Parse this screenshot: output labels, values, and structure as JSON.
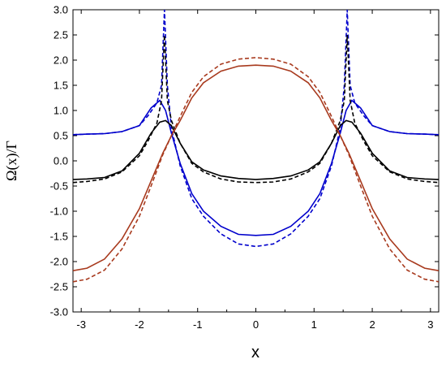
{
  "chart_data": {
    "type": "line",
    "xlabel": "x",
    "ylabel": "Ω(x)/Γ",
    "xlim": [
      -3.14159,
      3.14159
    ],
    "ylim": [
      -3.0,
      3.0
    ],
    "x_ticks": [
      -3,
      -2,
      -1,
      0,
      1,
      2,
      3
    ],
    "x_tick_labels": [
      "-3",
      "-2",
      "-1",
      "0",
      "1",
      "2",
      "3"
    ],
    "y_ticks": [
      -3.0,
      -2.5,
      -2.0,
      -1.5,
      -1.0,
      -0.5,
      0.0,
      0.5,
      1.0,
      1.5,
      2.0,
      2.5,
      3.0
    ],
    "y_tick_labels": [
      "-3.0",
      "-2.5",
      "-2.0",
      "-1.5",
      "-1.0",
      "-0.5",
      "0.0",
      "0.5",
      "1.0",
      "1.5",
      "2.0",
      "2.5",
      "3.0"
    ],
    "grid": false,
    "series": [
      {
        "color": "#0000cc",
        "dash": "solid",
        "x": [
          0,
          0.3,
          0.6,
          0.9,
          1.1,
          1.3,
          1.45,
          1.55,
          1.65,
          1.8,
          2.0,
          2.3,
          2.6,
          2.9,
          3.14
        ],
        "y": [
          -1.48,
          -1.46,
          -1.3,
          -1.0,
          -0.65,
          -0.05,
          0.55,
          1.0,
          1.2,
          1.05,
          0.7,
          0.58,
          0.54,
          0.53,
          0.52
        ]
      },
      {
        "color": "#0000cc",
        "dash": "dashed",
        "x": [
          0,
          0.3,
          0.6,
          0.9,
          1.1,
          1.3,
          1.45,
          1.52,
          1.57,
          1.62,
          1.7,
          1.85,
          2.0,
          2.3,
          2.6,
          2.9,
          3.14
        ],
        "y": [
          -1.7,
          -1.65,
          -1.45,
          -1.1,
          -0.75,
          -0.1,
          0.65,
          1.5,
          3.0,
          1.5,
          1.15,
          0.9,
          0.7,
          0.58,
          0.54,
          0.53,
          0.52
        ]
      },
      {
        "color": "#000000",
        "dash": "solid",
        "x": [
          0,
          0.3,
          0.6,
          0.9,
          1.1,
          1.3,
          1.45,
          1.55,
          1.65,
          1.8,
          2.0,
          2.3,
          2.6,
          2.9,
          3.14
        ],
        "y": [
          -0.37,
          -0.35,
          -0.3,
          -0.18,
          -0.02,
          0.35,
          0.7,
          0.8,
          0.77,
          0.55,
          0.15,
          -0.2,
          -0.33,
          -0.36,
          -0.37
        ]
      },
      {
        "color": "#000000",
        "dash": "dashed",
        "x": [
          0,
          0.3,
          0.6,
          0.9,
          1.1,
          1.3,
          1.45,
          1.52,
          1.57,
          1.62,
          1.7,
          1.85,
          2.0,
          2.3,
          2.6,
          2.9,
          3.14
        ],
        "y": [
          -0.43,
          -0.42,
          -0.36,
          -0.22,
          -0.05,
          0.35,
          0.8,
          1.2,
          2.5,
          1.2,
          0.75,
          0.4,
          0.1,
          -0.22,
          -0.36,
          -0.41,
          -0.43
        ]
      },
      {
        "color": "#a83a1e",
        "dash": "solid",
        "x": [
          0,
          0.3,
          0.6,
          0.9,
          1.1,
          1.3,
          1.45,
          1.6,
          1.8,
          2.0,
          2.3,
          2.6,
          2.9,
          3.14
        ],
        "y": [
          1.9,
          1.88,
          1.78,
          1.55,
          1.25,
          0.8,
          0.5,
          0.15,
          -0.4,
          -0.95,
          -1.55,
          -1.95,
          -2.13,
          -2.18
        ]
      },
      {
        "color": "#a83a1e",
        "dash": "dashed",
        "x": [
          0,
          0.3,
          0.6,
          0.9,
          1.1,
          1.3,
          1.45,
          1.6,
          1.8,
          2.0,
          2.3,
          2.6,
          2.9,
          3.14
        ],
        "y": [
          2.05,
          2.02,
          1.92,
          1.67,
          1.36,
          0.88,
          0.5,
          0.12,
          -0.5,
          -1.1,
          -1.75,
          -2.17,
          -2.35,
          -2.4
        ]
      }
    ]
  }
}
